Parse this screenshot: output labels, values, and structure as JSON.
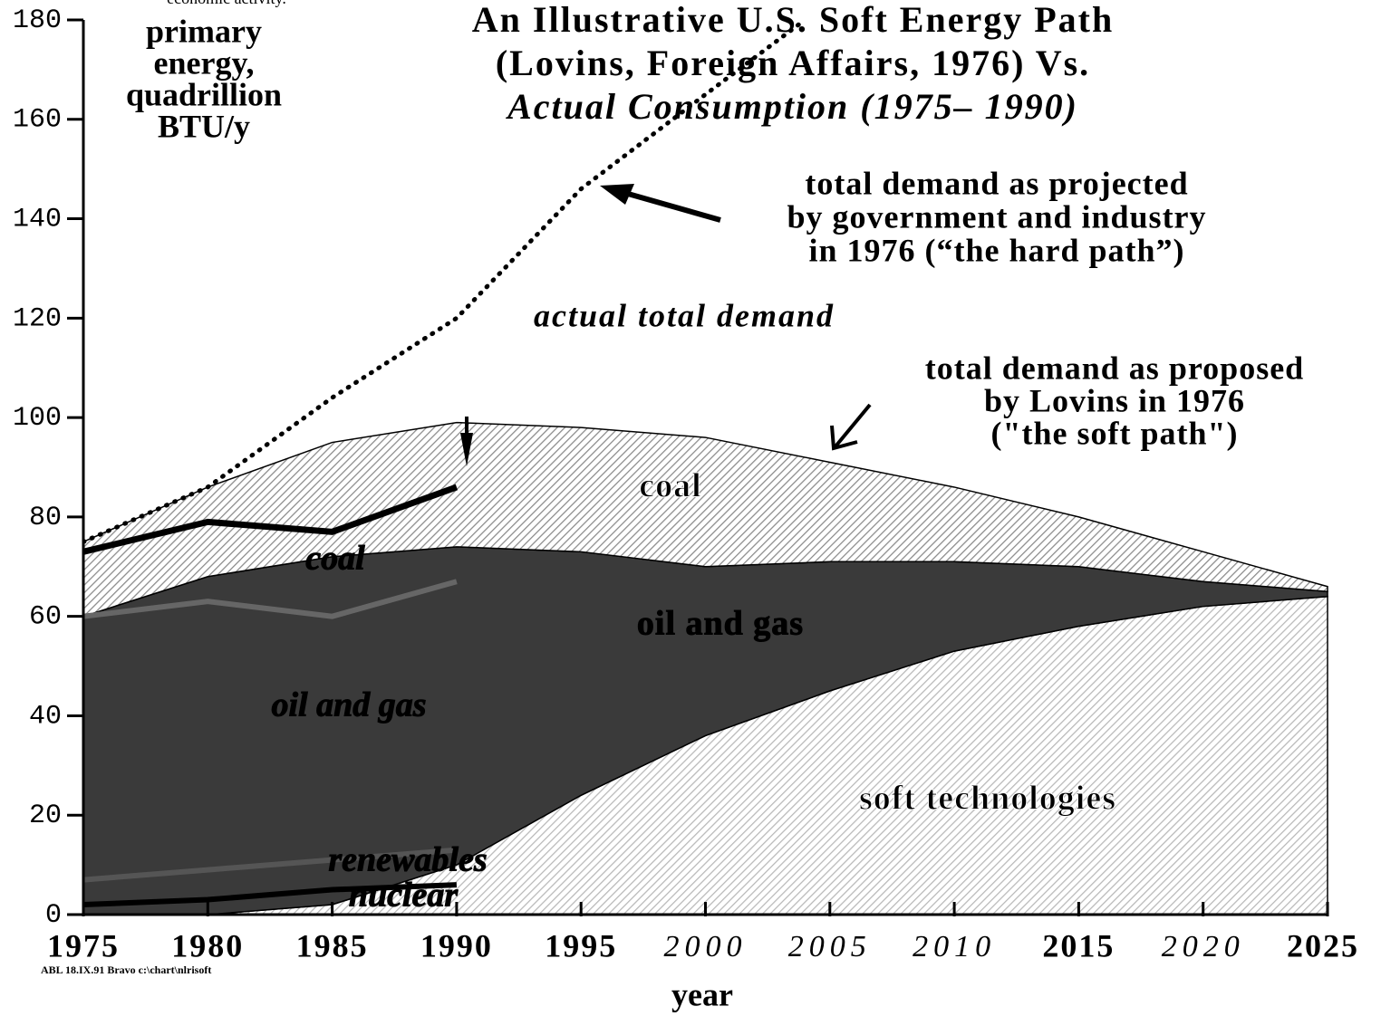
{
  "chart_data": {
    "type": "area",
    "title": [
      "An Illustrative U.S. Soft Energy Path",
      "(Lovins, Foreign Affairs, 1976) Vs.",
      "Actual Consumption (1975– 1990)"
    ],
    "ylabel": [
      "primary",
      "energy,",
      "quadrillion",
      "BTU/y"
    ],
    "xlabel": "year",
    "top_note": "economic activity.",
    "footer": "ABL 18.IX.91 Bravo c:\\chart\\nlrisoft",
    "xlim": [
      1975,
      2025
    ],
    "ylim": [
      0,
      180
    ],
    "xticks": [
      1975,
      1980,
      1985,
      1990,
      1995,
      2000,
      2005,
      2010,
      2015,
      2020,
      2025
    ],
    "yticks": [
      0,
      20,
      40,
      60,
      80,
      100,
      120,
      140,
      160,
      180
    ],
    "x": [
      1975,
      1980,
      1985,
      1990,
      1995,
      2000,
      2005,
      2010,
      2015,
      2020,
      2025
    ],
    "series": [
      {
        "name": "soft technologies",
        "color": "#b8b8b8",
        "values": [
          0,
          0,
          2,
          10,
          24,
          36,
          45,
          53,
          58,
          62,
          64
        ]
      },
      {
        "name": "oil and gas",
        "color": "#3a3a3a",
        "values": [
          60,
          68,
          70,
          64,
          49,
          34,
          26,
          18,
          12,
          5,
          1
        ]
      },
      {
        "name": "coal",
        "color": "#8a8a8a",
        "values": [
          15,
          18,
          23,
          25,
          25,
          26,
          20,
          15,
          10,
          6,
          1
        ]
      }
    ],
    "actual": {
      "x": [
        1975,
        1980,
        1985,
        1990
      ],
      "series": [
        {
          "name": "nuclear",
          "color": "#000000",
          "values": [
            2,
            3,
            5,
            6
          ]
        },
        {
          "name": "renewables",
          "color": "#555555",
          "values": [
            5,
            6,
            6,
            7
          ]
        },
        {
          "name": "oil and gas",
          "color": "#666666",
          "values": [
            53,
            54,
            49,
            54
          ]
        },
        {
          "name": "coal",
          "color": "#000000",
          "values": [
            13,
            16,
            17,
            19
          ]
        }
      ]
    },
    "projection": {
      "x": [
        1975,
        1980,
        1985,
        1990,
        1995,
        2000,
        2004
      ],
      "values": [
        75,
        86,
        104,
        120,
        146,
        165,
        180
      ]
    },
    "annotations": {
      "hard_path": [
        "total demand as projected",
        "by government and industry",
        "in 1976 (“the hard path”)"
      ],
      "actual_total": "actual total demand",
      "soft_path": [
        "total demand as proposed",
        "by Lovins in 1976",
        "(\"the soft path\")"
      ]
    }
  }
}
